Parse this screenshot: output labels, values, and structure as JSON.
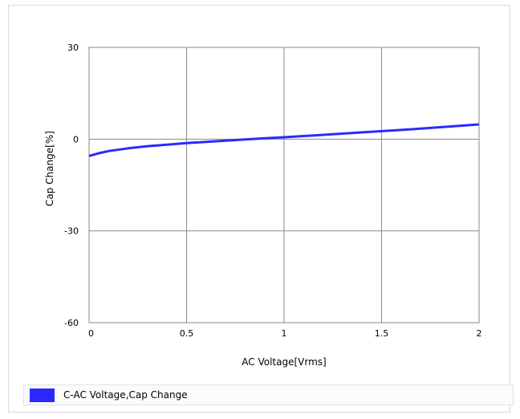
{
  "chart_data": {
    "type": "line",
    "xlabel": "AC Voltage[Vrms]",
    "ylabel": "Cap Change[%]",
    "xlim": [
      0,
      2
    ],
    "ylim": [
      -60,
      30
    ],
    "x_ticks": [
      "0",
      "0.5",
      "1",
      "1.5",
      "2"
    ],
    "y_ticks": [
      "30",
      "0",
      "-30",
      "-60"
    ],
    "grid": true,
    "legend_position": "bottom",
    "series": [
      {
        "name": "C-AC Voltage,Cap Change",
        "color": "#2a2aff",
        "x": [
          0,
          0.05,
          0.1,
          0.2,
          0.3,
          0.4,
          0.5,
          0.6,
          0.7,
          0.8,
          0.9,
          1.0,
          1.2,
          1.4,
          1.6,
          1.8,
          2.0
        ],
        "y": [
          -5.5,
          -4.6,
          -3.9,
          -3.0,
          -2.3,
          -1.8,
          -1.3,
          -0.9,
          -0.5,
          -0.1,
          0.3,
          0.6,
          1.4,
          2.2,
          3.0,
          3.9,
          4.8
        ]
      }
    ]
  }
}
